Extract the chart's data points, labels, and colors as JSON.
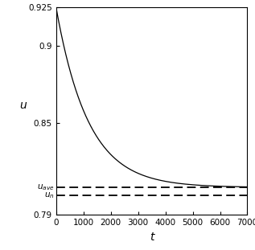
{
  "t_max": 7000,
  "t_points": 3000,
  "u0": 0.925,
  "u_ave": 0.808,
  "u_n": 0.803,
  "decay_rate": 0.00085,
  "ylim": [
    0.79,
    0.925
  ],
  "xlim": [
    0,
    7000
  ],
  "yticks": [
    0.79,
    0.85,
    0.9,
    0.925
  ],
  "xticks": [
    0,
    1000,
    2000,
    3000,
    4000,
    5000,
    6000,
    7000
  ],
  "xlabel": "t",
  "ylabel": "u",
  "line_color": "#000000",
  "dashed_color": "#000000",
  "bg_color": "#ffffff"
}
